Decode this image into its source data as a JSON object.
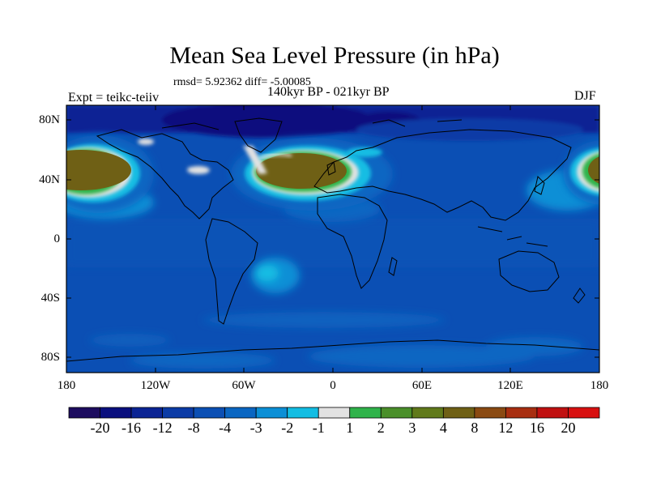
{
  "title": "Mean Sea Level Pressure (in hPa)",
  "stats_line": "rmsd= 5.92362 diff= -5.00085",
  "subtitle": "140kyr BP - 021kyr BP",
  "experiment": "Expt = teikc-teiiv",
  "season": "DJF",
  "y_axis_labels": [
    "80N",
    "40N",
    "0",
    "40S",
    "80S"
  ],
  "x_axis_labels": [
    "180",
    "120W",
    "60W",
    "0",
    "60E",
    "120E",
    "180"
  ],
  "colorbar": {
    "labels": [
      "-20",
      "-16",
      "-12",
      "-8",
      "-4",
      "-3",
      "-2",
      "-1",
      "1",
      "2",
      "3",
      "4",
      "8",
      "12",
      "16",
      "20"
    ],
    "colors": [
      "#1d0c5f",
      "#0a0f7e",
      "#0b2494",
      "#0b3ba6",
      "#0b4fb4",
      "#0a66c2",
      "#0b8fd6",
      "#12bde3",
      "#e2e2e2",
      "#2fb34a",
      "#4a8f2a",
      "#617a1b",
      "#6f6015",
      "#8a4a12",
      "#a82e10",
      "#c01010",
      "#d81010"
    ]
  },
  "map": {
    "background_color": "#0b4fb4",
    "features": [
      {
        "region": "North Atlantic high",
        "class": "4 to 8"
      },
      {
        "region": "North Pacific high",
        "class": "4 to 8"
      },
      {
        "region": "Arctic low",
        "class": "-16 to -12"
      },
      {
        "region": "Antarctic margin",
        "class": "-4 to -3"
      }
    ]
  }
}
